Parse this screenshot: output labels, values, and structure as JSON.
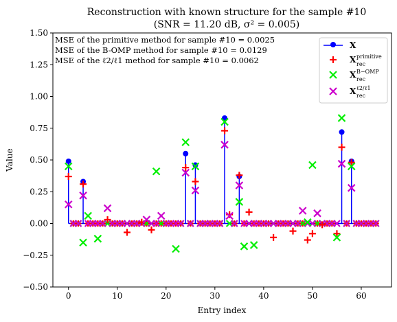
{
  "chart_data": {
    "type": "scatter",
    "title": "Reconstruction with known structure for the sample #10",
    "subtitle": "(SNR = 11.20 dB, σ² = 0.005)",
    "xlabel": "Entry index",
    "ylabel": "Value",
    "xlim": [
      -3.2,
      66.2
    ],
    "ylim": [
      -0.5,
      1.5
    ],
    "xticks": [
      "0",
      "10",
      "20",
      "30",
      "40",
      "50",
      "60"
    ],
    "yticks": [
      "−0.50",
      "−0.25",
      "0.00",
      "0.25",
      "0.50",
      "0.75",
      "1.00",
      "1.25",
      "1.50"
    ],
    "grid": false,
    "legend_position": "top-right",
    "annotations": [
      "MSE of the primitive method for sample #10 = 0.0025",
      "MSE of the B-OMP method for sample #10 = 0.0129",
      "MSE of the ℓ2/ℓ1 method for sample #10 = 0.0062"
    ],
    "series": [
      {
        "name": "X",
        "legend_base": "X",
        "legend_sub": "",
        "marker": "circle-stem",
        "color": "#0000ff",
        "points": [
          [
            0,
            0.49
          ],
          [
            3,
            0.33
          ],
          [
            24,
            0.55
          ],
          [
            26,
            0.46
          ],
          [
            32,
            0.83
          ],
          [
            35,
            0.37
          ],
          [
            56,
            0.72
          ],
          [
            58,
            0.49
          ]
        ]
      },
      {
        "name": "X_rec^primitive",
        "legend_base": "X",
        "legend_sub": "rec",
        "legend_sup": "primitive",
        "marker": "plus",
        "color": "#ff0000",
        "points": [
          [
            0,
            0.37
          ],
          [
            3,
            0.31
          ],
          [
            8,
            0.03
          ],
          [
            12,
            -0.07
          ],
          [
            15,
            0.01
          ],
          [
            17,
            -0.05
          ],
          [
            24,
            0.44
          ],
          [
            26,
            0.33
          ],
          [
            32,
            0.73
          ],
          [
            33,
            0.07
          ],
          [
            35,
            0.38
          ],
          [
            37,
            0.09
          ],
          [
            42,
            -0.11
          ],
          [
            46,
            -0.06
          ],
          [
            49,
            -0.13
          ],
          [
            50,
            -0.08
          ],
          [
            52,
            -0.01
          ],
          [
            55,
            -0.08
          ],
          [
            56,
            0.6
          ],
          [
            58,
            0.48
          ]
        ]
      },
      {
        "name": "X_rec^B-OMP",
        "legend_base": "X",
        "legend_sub": "rec",
        "legend_sup": "B−OMP",
        "marker": "x",
        "color": "#00ee00",
        "points": [
          [
            0,
            0.45
          ],
          [
            3,
            -0.15
          ],
          [
            4,
            0.06
          ],
          [
            6,
            -0.12
          ],
          [
            18,
            0.41
          ],
          [
            22,
            -0.2
          ],
          [
            24,
            0.64
          ],
          [
            26,
            0.45
          ],
          [
            32,
            0.8
          ],
          [
            35,
            0.17
          ],
          [
            36,
            -0.18
          ],
          [
            38,
            -0.17
          ],
          [
            49,
            0.01
          ],
          [
            50,
            0.46
          ],
          [
            55,
            -0.11
          ],
          [
            56,
            0.83
          ],
          [
            58,
            0.45
          ]
        ]
      },
      {
        "name": "X_rec^ℓ2/ℓ1",
        "legend_base": "X",
        "legend_sub": "rec",
        "legend_sup": "ℓ2/ℓ1",
        "marker": "x",
        "color": "#cc00cc",
        "points": [
          [
            0,
            0.15
          ],
          [
            3,
            0.22
          ],
          [
            8,
            0.12
          ],
          [
            16,
            0.03
          ],
          [
            19,
            0.06
          ],
          [
            24,
            0.4
          ],
          [
            26,
            0.26
          ],
          [
            32,
            0.62
          ],
          [
            33,
            0.06
          ],
          [
            35,
            0.3
          ],
          [
            48,
            0.1
          ],
          [
            51,
            0.08
          ],
          [
            56,
            0.47
          ],
          [
            58,
            0.28
          ]
        ]
      }
    ]
  }
}
